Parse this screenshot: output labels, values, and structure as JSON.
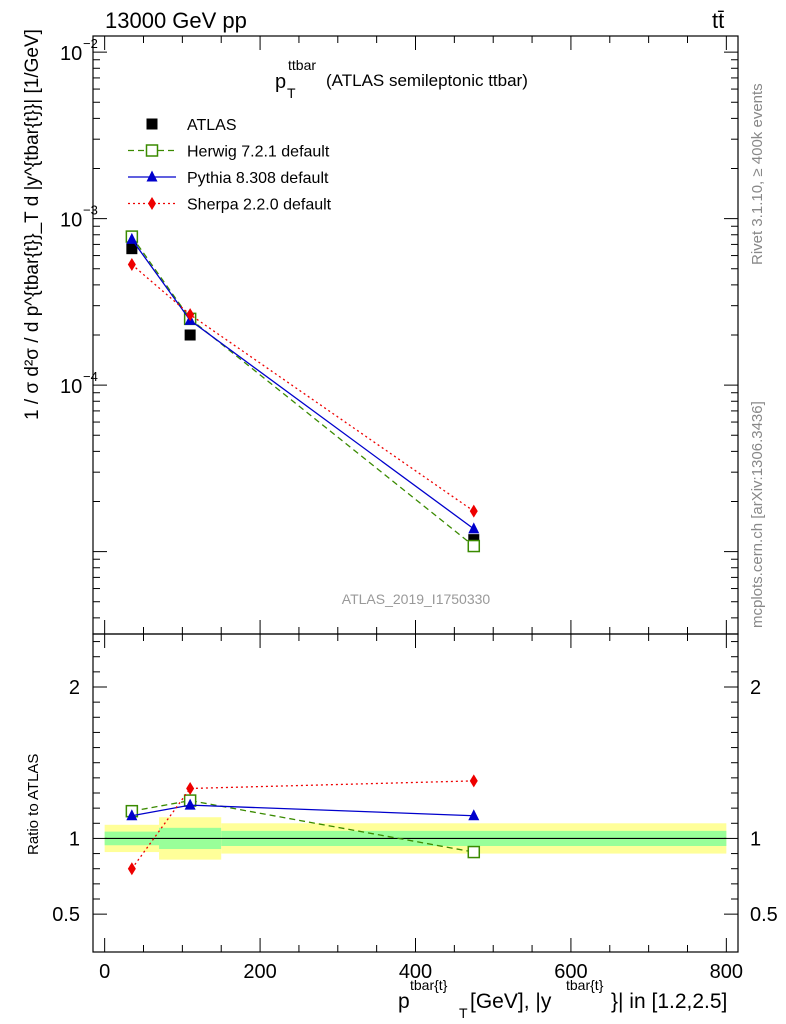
{
  "header": {
    "energy_label": "13000 GeV pp",
    "process_label": "tt̄"
  },
  "side_labels": {
    "rivet": "Rivet 3.1.10, ≥ 400k events",
    "mcplots": "mcplots.cern.ch [arXiv:1306.3436]"
  },
  "chart_data": [
    {
      "type": "line",
      "title_main": "p",
      "title_sup": "ttbar",
      "title_sub": "T",
      "title_rest": "(ATLAS semileptonic ttbar)",
      "ylabel": "1 / σ d²σ / d p^{tbar{t}}_T d |y^{tbar{t}}| [1/GeV]",
      "yscale": "log",
      "ylim": [
        3.2e-06,
        0.0125
      ],
      "xlim": [
        -15,
        815
      ],
      "analysis_label": "ATLAS_2019_I1750330",
      "y_ticks": [
        {
          "value": 0.01,
          "base": "10",
          "exp": "−2"
        },
        {
          "value": 0.001,
          "base": "10",
          "exp": "−3"
        },
        {
          "value": 0.0001,
          "base": "10",
          "exp": "−4"
        }
      ],
      "legend_position": "top-left",
      "series": [
        {
          "name": "ATLAS",
          "color": "#000000",
          "marker": "square-filled",
          "x": [
            35,
            110,
            475
          ],
          "values": [
            0.00066,
            0.0002,
            1.18e-05
          ],
          "xerr": [
            [
              0,
              70
            ],
            [
              70,
              150
            ],
            [
              150,
              800
            ]
          ]
        },
        {
          "name": "Herwig 7.2.1 default",
          "color": "#3a8a00",
          "marker": "square-open",
          "dash": "6,4",
          "x": [
            35,
            110,
            475
          ],
          "values": [
            0.00078,
            0.00025,
            1.08e-05
          ]
        },
        {
          "name": "Pythia 8.308 default",
          "color": "#0000cc",
          "marker": "triangle",
          "x": [
            35,
            110,
            475
          ],
          "values": [
            0.00075,
            0.000245,
            1.37e-05
          ]
        },
        {
          "name": "Sherpa 2.2.0 default",
          "color": "#ee0000",
          "marker": "diamond",
          "dash": "2,3",
          "x": [
            35,
            110,
            475
          ],
          "values": [
            0.00053,
            0.000265,
            1.75e-05
          ]
        }
      ]
    },
    {
      "type": "line",
      "ylabel": "Ratio to ATLAS",
      "xlabel_parts": {
        "p": "p",
        "sup1": "tbar{t}",
        "sub": "T",
        "mid": " [GeV], |y",
        "sup2": "tbar{t}",
        "end": "}| in [1.2,2.5]"
      },
      "xlim": [
        -15,
        815
      ],
      "ylim": [
        0.25,
        2.35
      ],
      "x_ticks": [
        0,
        200,
        400,
        600,
        800
      ],
      "y_ticks": [
        0.5,
        1,
        2
      ],
      "y_tick_labels": [
        "0.5",
        "1",
        "2"
      ],
      "band_outer_color": "#ffff99",
      "band_inner_color": "#99ff99",
      "bands": [
        {
          "x": [
            0,
            70
          ],
          "outer": [
            0.91,
            1.09
          ],
          "inner": [
            0.955,
            1.045
          ]
        },
        {
          "x": [
            70,
            150
          ],
          "outer": [
            0.86,
            1.14
          ],
          "inner": [
            0.93,
            1.07
          ]
        },
        {
          "x": [
            150,
            800
          ],
          "outer": [
            0.9,
            1.1
          ],
          "inner": [
            0.95,
            1.05
          ]
        }
      ],
      "series": [
        {
          "name": "Herwig 7.2.1 default",
          "color": "#3a8a00",
          "marker": "square-open",
          "dash": "6,4",
          "x": [
            35,
            110,
            475
          ],
          "values": [
            1.18,
            1.25,
            0.91
          ]
        },
        {
          "name": "Pythia 8.308 default",
          "color": "#0000cc",
          "marker": "triangle",
          "x": [
            35,
            110,
            475
          ],
          "values": [
            1.15,
            1.22,
            1.15
          ]
        },
        {
          "name": "Sherpa 2.2.0 default",
          "color": "#ee0000",
          "marker": "diamond",
          "dash": "2,3",
          "x": [
            35,
            110,
            475
          ],
          "values": [
            0.8,
            1.33,
            1.38
          ]
        }
      ]
    }
  ]
}
